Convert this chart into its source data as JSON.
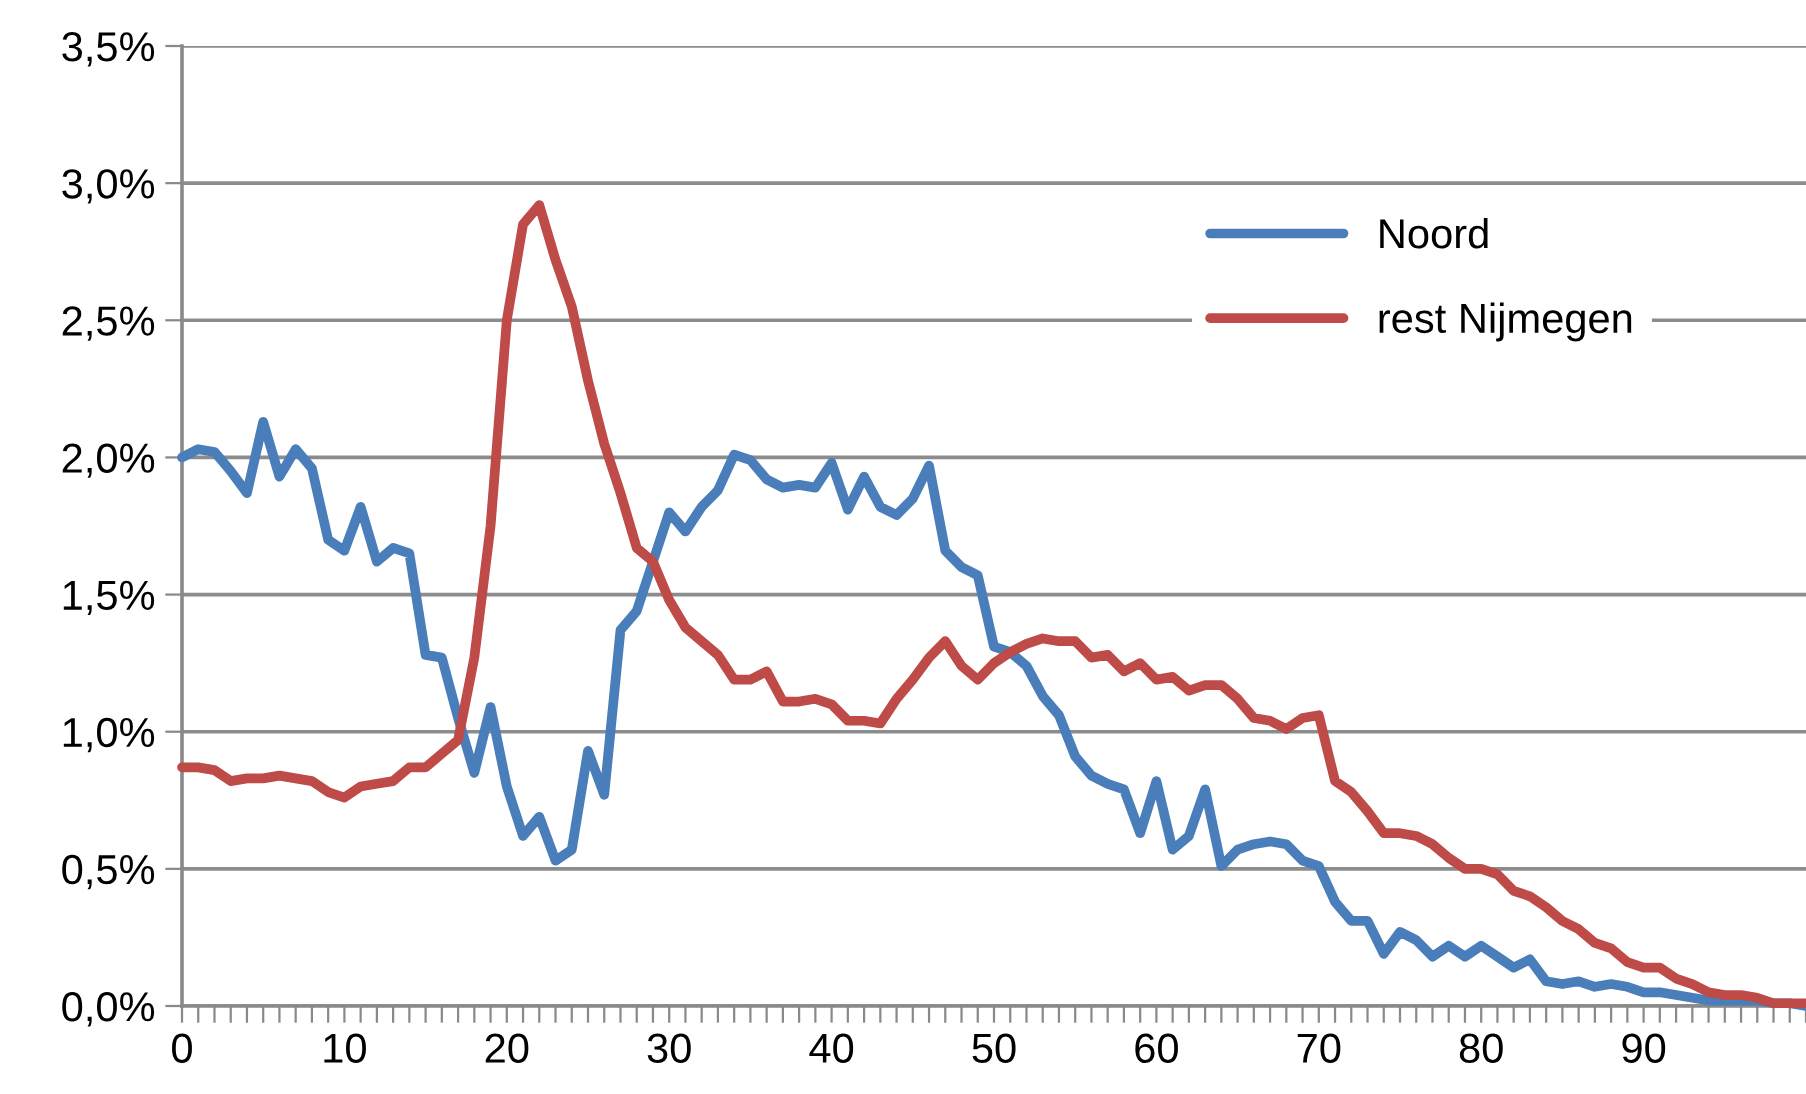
{
  "chart_data": {
    "type": "line",
    "x": [
      0,
      1,
      2,
      3,
      4,
      5,
      6,
      7,
      8,
      9,
      10,
      11,
      12,
      13,
      14,
      15,
      16,
      17,
      18,
      19,
      20,
      21,
      22,
      23,
      24,
      25,
      26,
      27,
      28,
      29,
      30,
      31,
      32,
      33,
      34,
      35,
      36,
      37,
      38,
      39,
      40,
      41,
      42,
      43,
      44,
      45,
      46,
      47,
      48,
      49,
      50,
      51,
      52,
      53,
      54,
      55,
      56,
      57,
      58,
      59,
      60,
      61,
      62,
      63,
      64,
      65,
      66,
      67,
      68,
      69,
      70,
      71,
      72,
      73,
      74,
      75,
      76,
      77,
      78,
      79,
      80,
      81,
      82,
      83,
      84,
      85,
      86,
      87,
      88,
      89,
      90,
      91,
      92,
      93,
      94,
      95,
      96,
      97,
      98,
      99,
      100
    ],
    "series": [
      {
        "name": "Noord",
        "color": "#4a7ebb",
        "values": [
          2.0,
          2.03,
          2.02,
          1.95,
          1.87,
          2.13,
          1.93,
          2.03,
          1.96,
          1.7,
          1.66,
          1.82,
          1.62,
          1.67,
          1.65,
          1.28,
          1.27,
          1.05,
          0.85,
          1.09,
          0.8,
          0.62,
          0.69,
          0.53,
          0.57,
          0.93,
          0.77,
          1.37,
          1.44,
          1.62,
          1.8,
          1.73,
          1.82,
          1.88,
          2.01,
          1.99,
          1.92,
          1.89,
          1.9,
          1.89,
          1.98,
          1.81,
          1.93,
          1.82,
          1.79,
          1.85,
          1.97,
          1.66,
          1.6,
          1.57,
          1.31,
          1.29,
          1.24,
          1.13,
          1.06,
          0.91,
          0.84,
          0.81,
          0.79,
          0.63,
          0.82,
          0.57,
          0.62,
          0.79,
          0.51,
          0.57,
          0.59,
          0.6,
          0.59,
          0.53,
          0.51,
          0.38,
          0.31,
          0.31,
          0.19,
          0.27,
          0.24,
          0.18,
          0.22,
          0.18,
          0.22,
          0.18,
          0.14,
          0.17,
          0.09,
          0.08,
          0.09,
          0.07,
          0.08,
          0.07,
          0.05,
          0.05,
          0.04,
          0.03,
          0.02,
          0.02,
          0.02,
          0.02,
          0.01,
          0.01,
          0.0
        ]
      },
      {
        "name": "rest Nijmegen",
        "color": "#be4b48",
        "values": [
          0.87,
          0.87,
          0.86,
          0.82,
          0.83,
          0.83,
          0.84,
          0.83,
          0.82,
          0.78,
          0.76,
          0.8,
          0.81,
          0.82,
          0.87,
          0.87,
          0.92,
          0.97,
          1.27,
          1.75,
          2.5,
          2.85,
          2.92,
          2.72,
          2.55,
          2.28,
          2.05,
          1.87,
          1.67,
          1.62,
          1.48,
          1.38,
          1.33,
          1.28,
          1.19,
          1.19,
          1.22,
          1.11,
          1.11,
          1.12,
          1.1,
          1.04,
          1.04,
          1.03,
          1.12,
          1.19,
          1.27,
          1.33,
          1.24,
          1.19,
          1.25,
          1.29,
          1.32,
          1.34,
          1.33,
          1.33,
          1.27,
          1.28,
          1.22,
          1.25,
          1.19,
          1.2,
          1.15,
          1.17,
          1.17,
          1.12,
          1.05,
          1.04,
          1.01,
          1.05,
          1.06,
          0.82,
          0.78,
          0.71,
          0.63,
          0.63,
          0.62,
          0.59,
          0.54,
          0.5,
          0.5,
          0.48,
          0.42,
          0.4,
          0.36,
          0.31,
          0.28,
          0.23,
          0.21,
          0.16,
          0.14,
          0.14,
          0.1,
          0.08,
          0.05,
          0.04,
          0.04,
          0.03,
          0.01,
          0.01,
          0.01
        ]
      }
    ],
    "xlim": [
      0,
      100
    ],
    "xticks": [
      0,
      {
        "value": 1,
        "label": null
      },
      {
        "value": 2,
        "label": null
      },
      {
        "value": 3,
        "label": null
      },
      {
        "value": 4,
        "label": null
      },
      {
        "value": 5,
        "label": null
      },
      {
        "value": 6,
        "label": null
      },
      {
        "value": 7,
        "label": null
      },
      {
        "value": 8,
        "label": null
      },
      {
        "value": 9,
        "label": null
      },
      10,
      {
        "value": 11,
        "label": null
      },
      {
        "value": 12,
        "label": null
      },
      {
        "value": 13,
        "label": null
      },
      {
        "value": 14,
        "label": null
      },
      {
        "value": 15,
        "label": null
      },
      {
        "value": 16,
        "label": null
      },
      {
        "value": 17,
        "label": null
      },
      {
        "value": 18,
        "label": null
      },
      {
        "value": 19,
        "label": null
      },
      20,
      {
        "value": 21,
        "label": null
      },
      {
        "value": 22,
        "label": null
      },
      {
        "value": 23,
        "label": null
      },
      {
        "value": 24,
        "label": null
      },
      {
        "value": 25,
        "label": null
      },
      {
        "value": 26,
        "label": null
      },
      {
        "value": 27,
        "label": null
      },
      {
        "value": 28,
        "label": null
      },
      {
        "value": 29,
        "label": null
      },
      30,
      {
        "value": 31,
        "label": null
      },
      {
        "value": 32,
        "label": null
      },
      {
        "value": 33,
        "label": null
      },
      {
        "value": 34,
        "label": null
      },
      {
        "value": 35,
        "label": null
      },
      {
        "value": 36,
        "label": null
      },
      {
        "value": 37,
        "label": null
      },
      {
        "value": 38,
        "label": null
      },
      {
        "value": 39,
        "label": null
      },
      40,
      {
        "value": 41,
        "label": null
      },
      {
        "value": 42,
        "label": null
      },
      {
        "value": 43,
        "label": null
      },
      {
        "value": 44,
        "label": null
      },
      {
        "value": 45,
        "label": null
      },
      {
        "value": 46,
        "label": null
      },
      {
        "value": 47,
        "label": null
      },
      {
        "value": 48,
        "label": null
      },
      {
        "value": 49,
        "label": null
      },
      50,
      {
        "value": 51,
        "label": null
      },
      {
        "value": 52,
        "label": null
      },
      {
        "value": 53,
        "label": null
      },
      {
        "value": 54,
        "label": null
      },
      {
        "value": 55,
        "label": null
      },
      {
        "value": 56,
        "label": null
      },
      {
        "value": 57,
        "label": null
      },
      {
        "value": 58,
        "label": null
      },
      {
        "value": 59,
        "label": null
      },
      60,
      {
        "value": 61,
        "label": null
      },
      {
        "value": 62,
        "label": null
      },
      {
        "value": 63,
        "label": null
      },
      {
        "value": 64,
        "label": null
      },
      {
        "value": 65,
        "label": null
      },
      {
        "value": 66,
        "label": null
      },
      {
        "value": 67,
        "label": null
      },
      {
        "value": 68,
        "label": null
      },
      {
        "value": 69,
        "label": null
      },
      70,
      {
        "value": 71,
        "label": null
      },
      {
        "value": 72,
        "label": null
      },
      {
        "value": 73,
        "label": null
      },
      {
        "value": 74,
        "label": null
      },
      {
        "value": 75,
        "label": null
      },
      {
        "value": 76,
        "label": null
      },
      {
        "value": 77,
        "label": null
      },
      {
        "value": 78,
        "label": null
      },
      {
        "value": 79,
        "label": null
      },
      80,
      {
        "value": 81,
        "label": null
      },
      {
        "value": 82,
        "label": null
      },
      {
        "value": 83,
        "label": null
      },
      {
        "value": 84,
        "label": null
      },
      {
        "value": 85,
        "label": null
      },
      {
        "value": 86,
        "label": null
      },
      {
        "value": 87,
        "label": null
      },
      {
        "value": 88,
        "label": null
      },
      {
        "value": 89,
        "label": null
      },
      90,
      {
        "value": 91,
        "label": null
      },
      {
        "value": 92,
        "label": null
      },
      {
        "value": 93,
        "label": null
      },
      {
        "value": 94,
        "label": null
      },
      {
        "value": 95,
        "label": null
      },
      {
        "value": 96,
        "label": null
      },
      {
        "value": 97,
        "label": null
      },
      {
        "value": 98,
        "label": null
      },
      {
        "value": 99,
        "label": null
      },
      {
        "value": 100,
        "label": null
      }
    ],
    "ylim": [
      0,
      3.5
    ],
    "yticks": [
      {
        "value": 0,
        "label": "0,0%"
      },
      {
        "value": 0.5,
        "label": "0,5%"
      },
      {
        "value": 1,
        "label": "1,0%"
      },
      {
        "value": 1.5,
        "label": "1,5%"
      },
      {
        "value": 2,
        "label": "2,0%"
      },
      {
        "value": 2.5,
        "label": "2,5%"
      },
      {
        "value": 3,
        "label": "3,0%"
      },
      {
        "value": 3.5,
        "label": "3,5%"
      }
    ],
    "grid": "y",
    "legend": "top right",
    "marker": "none",
    "line_style": "solid"
  }
}
